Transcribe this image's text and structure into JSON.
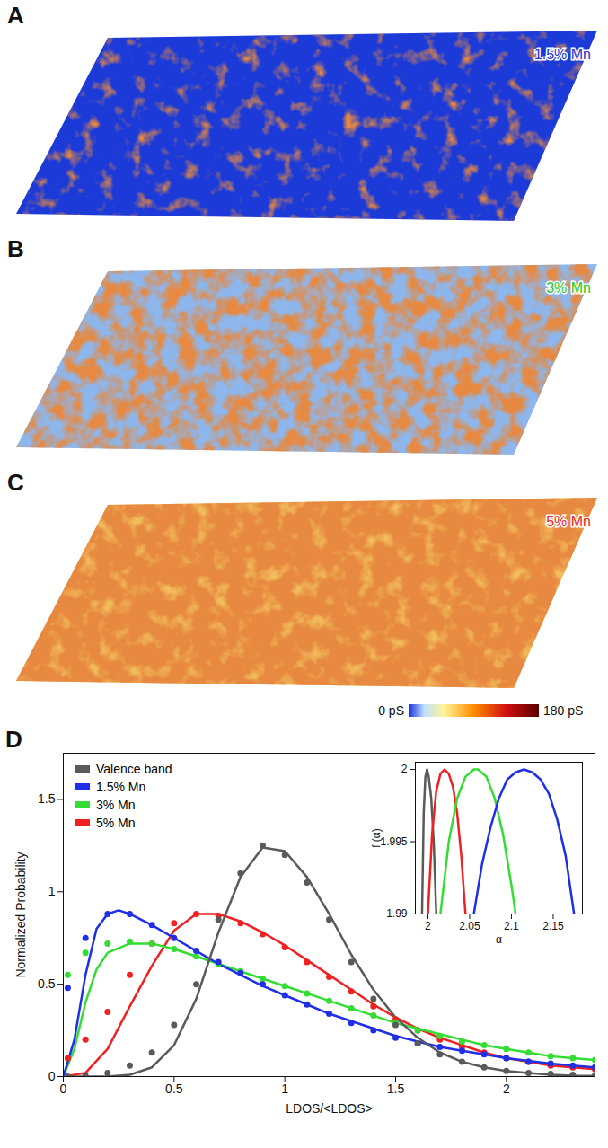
{
  "chart_data": {
    "type": "scatter",
    "panel": "D",
    "x_label": "LDOS/<LDOS>",
    "y_label": "Normalized Probability",
    "xlim": [
      0,
      2.4
    ],
    "ylim": [
      0,
      1.75
    ],
    "xticks": [
      0,
      0.5,
      1,
      1.5,
      2
    ],
    "yticks": [
      0,
      0.5,
      1,
      1.5
    ],
    "legend": "upper left",
    "marker": "circle",
    "x": [
      0.02,
      0.1,
      0.2,
      0.3,
      0.4,
      0.5,
      0.6,
      0.7,
      0.8,
      0.9,
      1.0,
      1.1,
      1.2,
      1.3,
      1.4,
      1.5,
      1.6,
      1.7,
      1.8,
      1.9,
      2.0,
      2.1,
      2.2,
      2.3,
      2.4
    ],
    "series": [
      {
        "name": "Valence band",
        "color": "#5a5a5a",
        "values": [
          0,
          0.005,
          0.02,
          0.06,
          0.13,
          0.28,
          0.5,
          0.85,
          1.1,
          1.25,
          1.2,
          1.05,
          0.85,
          0.62,
          0.42,
          0.28,
          0.18,
          0.12,
          0.08,
          0.05,
          0.03,
          0.02,
          0.015,
          0.01,
          0.005
        ],
        "fit": {
          "type": "line",
          "x": [
            0,
            0.1,
            0.2,
            0.3,
            0.4,
            0.5,
            0.6,
            0.7,
            0.8,
            0.9,
            1.0,
            1.1,
            1.2,
            1.3,
            1.4,
            1.5,
            1.6,
            1.7,
            1.8,
            1.9,
            2.0,
            2.1,
            2.2,
            2.3,
            2.4
          ],
          "values": [
            0,
            0,
            0,
            0.01,
            0.05,
            0.17,
            0.42,
            0.78,
            1.08,
            1.24,
            1.22,
            1.08,
            0.88,
            0.66,
            0.47,
            0.32,
            0.21,
            0.13,
            0.08,
            0.05,
            0.03,
            0.02,
            0.01,
            0.005,
            0.003
          ]
        }
      },
      {
        "name": "1.5% Mn",
        "color": "#1f2fe6",
        "values": [
          0.48,
          0.75,
          0.88,
          0.88,
          0.82,
          0.75,
          0.68,
          0.62,
          0.56,
          0.5,
          0.44,
          0.39,
          0.34,
          0.29,
          0.25,
          0.21,
          0.18,
          0.16,
          0.14,
          0.12,
          0.1,
          0.08,
          0.07,
          0.06,
          0.05
        ],
        "fit": {
          "type": "line",
          "x": [
            0,
            0.05,
            0.1,
            0.15,
            0.2,
            0.25,
            0.3,
            0.4,
            0.5,
            0.6,
            0.7,
            0.8,
            0.9,
            1.0,
            1.1,
            1.2,
            1.3,
            1.4,
            1.5,
            1.6,
            1.7,
            1.8,
            1.9,
            2.0,
            2.1,
            2.2,
            2.3,
            2.4
          ],
          "values": [
            0,
            0.2,
            0.55,
            0.8,
            0.88,
            0.9,
            0.88,
            0.82,
            0.75,
            0.68,
            0.61,
            0.55,
            0.49,
            0.44,
            0.39,
            0.34,
            0.3,
            0.26,
            0.22,
            0.19,
            0.16,
            0.14,
            0.12,
            0.1,
            0.085,
            0.07,
            0.06,
            0.05
          ]
        }
      },
      {
        "name": "3% Mn",
        "color": "#33dd33",
        "values": [
          0.55,
          0.67,
          0.72,
          0.73,
          0.72,
          0.69,
          0.65,
          0.61,
          0.57,
          0.53,
          0.49,
          0.45,
          0.41,
          0.37,
          0.33,
          0.29,
          0.25,
          0.22,
          0.19,
          0.17,
          0.15,
          0.13,
          0.11,
          0.1,
          0.09
        ],
        "fit": {
          "type": "line",
          "x": [
            0,
            0.05,
            0.1,
            0.15,
            0.2,
            0.3,
            0.4,
            0.5,
            0.6,
            0.7,
            0.8,
            0.9,
            1.0,
            1.1,
            1.2,
            1.3,
            1.4,
            1.5,
            1.6,
            1.7,
            1.8,
            1.9,
            2.0,
            2.1,
            2.2,
            2.3,
            2.4
          ],
          "values": [
            0,
            0.15,
            0.4,
            0.58,
            0.67,
            0.72,
            0.72,
            0.69,
            0.65,
            0.61,
            0.57,
            0.53,
            0.49,
            0.45,
            0.41,
            0.37,
            0.33,
            0.29,
            0.26,
            0.23,
            0.2,
            0.17,
            0.15,
            0.13,
            0.11,
            0.1,
            0.09
          ]
        }
      },
      {
        "name": "5% Mn",
        "color": "#ee2222",
        "values": [
          0.1,
          0.2,
          0.35,
          0.55,
          0.72,
          0.83,
          0.88,
          0.87,
          0.83,
          0.77,
          0.7,
          0.62,
          0.54,
          0.46,
          0.38,
          0.31,
          0.25,
          0.2,
          0.16,
          0.13,
          0.1,
          0.08,
          0.06,
          0.05,
          0.04
        ],
        "fit": {
          "type": "line",
          "x": [
            0,
            0.1,
            0.2,
            0.3,
            0.4,
            0.5,
            0.6,
            0.7,
            0.8,
            0.9,
            1.0,
            1.1,
            1.2,
            1.3,
            1.4,
            1.5,
            1.6,
            1.7,
            1.8,
            1.9,
            2.0,
            2.1,
            2.2,
            2.3,
            2.4
          ],
          "values": [
            0,
            0.02,
            0.15,
            0.38,
            0.6,
            0.79,
            0.88,
            0.88,
            0.84,
            0.78,
            0.71,
            0.63,
            0.55,
            0.47,
            0.39,
            0.32,
            0.26,
            0.21,
            0.17,
            0.13,
            0.1,
            0.08,
            0.06,
            0.05,
            0.04
          ]
        }
      }
    ],
    "inset": {
      "type": "line",
      "x_label": "α",
      "y_label": "f (α)",
      "xlim": [
        1.985,
        2.185
      ],
      "ylim": [
        1.99,
        2.0005
      ],
      "xticks": [
        2,
        2.05,
        2.1,
        2.15
      ],
      "yticks": [
        1.99,
        1.995,
        2
      ],
      "series": [
        {
          "color": "#5a5a5a",
          "x": [
            1.993,
            1.995,
            1.997,
            1.999,
            2.001,
            2.004,
            2.007,
            2.01
          ],
          "values": [
            1.99,
            1.997,
            1.9995,
            2.0,
            1.9995,
            1.998,
            1.995,
            1.99
          ]
        },
        {
          "color": "#ee2222",
          "x": [
            2.0,
            2.005,
            2.01,
            2.015,
            2.02,
            2.025,
            2.03,
            2.035,
            2.04,
            2.045
          ],
          "values": [
            1.99,
            1.9955,
            1.9985,
            1.9997,
            2.0,
            1.9997,
            1.9988,
            1.997,
            1.994,
            1.99
          ]
        },
        {
          "color": "#33dd33",
          "x": [
            2.015,
            2.025,
            2.035,
            2.045,
            2.055,
            2.06,
            2.07,
            2.08,
            2.09,
            2.1,
            2.105
          ],
          "values": [
            1.99,
            1.995,
            1.998,
            1.9995,
            2.0,
            2.0,
            1.9995,
            1.998,
            1.9955,
            1.992,
            1.99
          ]
        },
        {
          "color": "#1f2fe6",
          "x": [
            2.055,
            2.065,
            2.075,
            2.085,
            2.095,
            2.105,
            2.115,
            2.125,
            2.135,
            2.145,
            2.155,
            2.165,
            2.175
          ],
          "values": [
            1.99,
            1.9935,
            1.996,
            1.998,
            1.9993,
            1.9998,
            2.0,
            1.9998,
            1.9993,
            1.9983,
            1.9965,
            1.994,
            1.99
          ]
        }
      ]
    }
  },
  "maps": {
    "panels": [
      {
        "letter": "A",
        "label": "1.5% Mn",
        "color": "#2233cc"
      },
      {
        "letter": "B",
        "label": "3% Mn",
        "color": "#22cc22"
      },
      {
        "letter": "C",
        "label": "5% Mn",
        "color": "#ee2222"
      }
    ],
    "colorbar": {
      "range": [
        0,
        180
      ],
      "ticks": [
        {
          "value": 0,
          "label": "0 pS"
        },
        {
          "value": 180,
          "label": "180 pS"
        }
      ]
    }
  }
}
